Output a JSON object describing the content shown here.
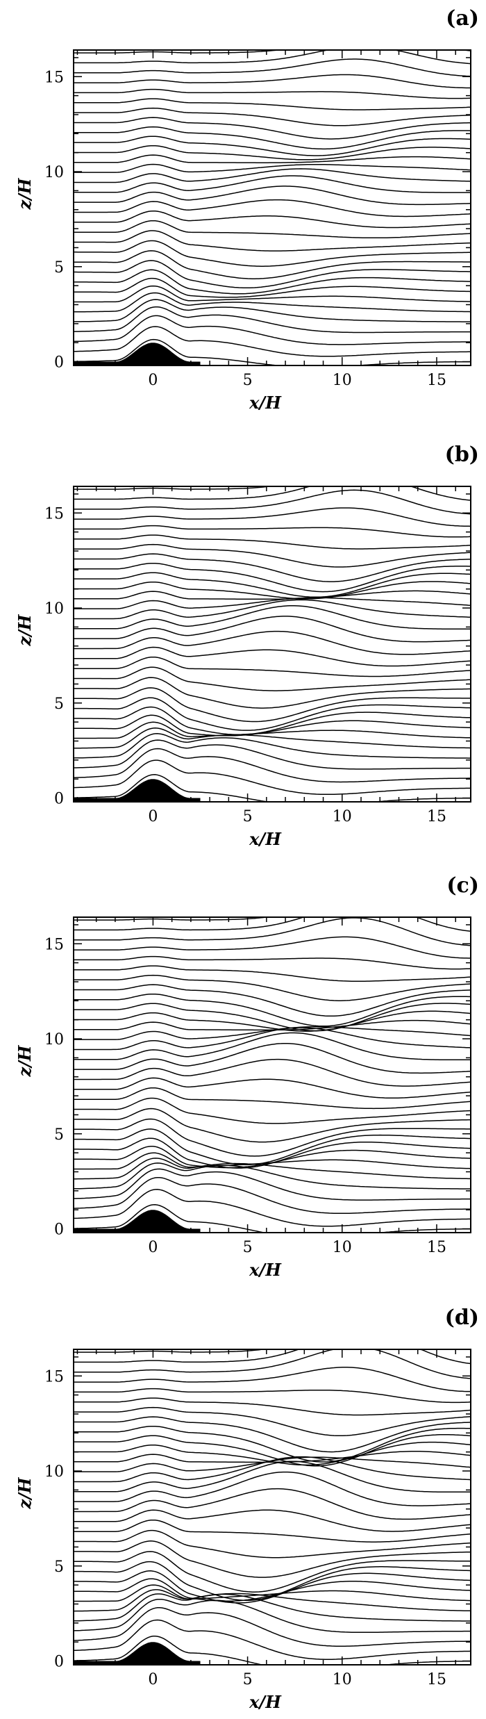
{
  "chart_data": [
    {
      "type": "contour",
      "panel_label": "(a)",
      "xlabel": "x/H",
      "ylabel": "z/H",
      "xlim": [
        -4.2,
        16.8
      ],
      "ylim": [
        -0.2,
        16.4
      ],
      "xticks": [
        0,
        5,
        10,
        15
      ],
      "yticks": [
        0,
        5,
        10,
        15
      ],
      "xtick_labels": [
        "0",
        "5",
        "10",
        "15"
      ],
      "ytick_labels": [
        "0",
        "5",
        "10",
        "15"
      ],
      "mountain": {
        "height": 1,
        "half_width": 2
      },
      "num_streamlines": 32,
      "wave_amplitude": 0.9,
      "line_color": "#000000"
    },
    {
      "type": "contour",
      "panel_label": "(b)",
      "xlabel": "x/H",
      "ylabel": "z/H",
      "xlim": [
        -4.2,
        16.8
      ],
      "ylim": [
        -0.2,
        16.4
      ],
      "xticks": [
        0,
        5,
        10,
        15
      ],
      "yticks": [
        0,
        5,
        10,
        15
      ],
      "xtick_labels": [
        "0",
        "5",
        "10",
        "15"
      ],
      "ytick_labels": [
        "0",
        "5",
        "10",
        "15"
      ],
      "mountain": {
        "height": 1,
        "half_width": 2
      },
      "num_streamlines": 32,
      "wave_amplitude": 1.25,
      "line_color": "#000000"
    },
    {
      "type": "contour",
      "panel_label": "(c)",
      "xlabel": "x/H",
      "ylabel": "z/H",
      "xlim": [
        -4.2,
        16.8
      ],
      "ylim": [
        -0.2,
        16.4
      ],
      "xticks": [
        0,
        5,
        10,
        15
      ],
      "yticks": [
        0,
        5,
        10,
        15
      ],
      "xtick_labels": [
        "0",
        "5",
        "10",
        "15"
      ],
      "ytick_labels": [
        "0",
        "5",
        "10",
        "15"
      ],
      "mountain": {
        "height": 1,
        "half_width": 2
      },
      "num_streamlines": 32,
      "wave_amplitude": 1.45,
      "line_color": "#000000"
    },
    {
      "type": "contour",
      "panel_label": "(d)",
      "xlabel": "x/H",
      "ylabel": "z/H",
      "xlim": [
        -4.2,
        16.8
      ],
      "ylim": [
        -0.2,
        16.4
      ],
      "xticks": [
        0,
        5,
        10,
        15
      ],
      "yticks": [
        0,
        5,
        10,
        15
      ],
      "xtick_labels": [
        "0",
        "5",
        "10",
        "15"
      ],
      "ytick_labels": [
        "0",
        "5",
        "10",
        "15"
      ],
      "mountain": {
        "height": 1,
        "half_width": 2
      },
      "num_streamlines": 32,
      "wave_amplitude": 1.65,
      "line_color": "#000000"
    }
  ]
}
